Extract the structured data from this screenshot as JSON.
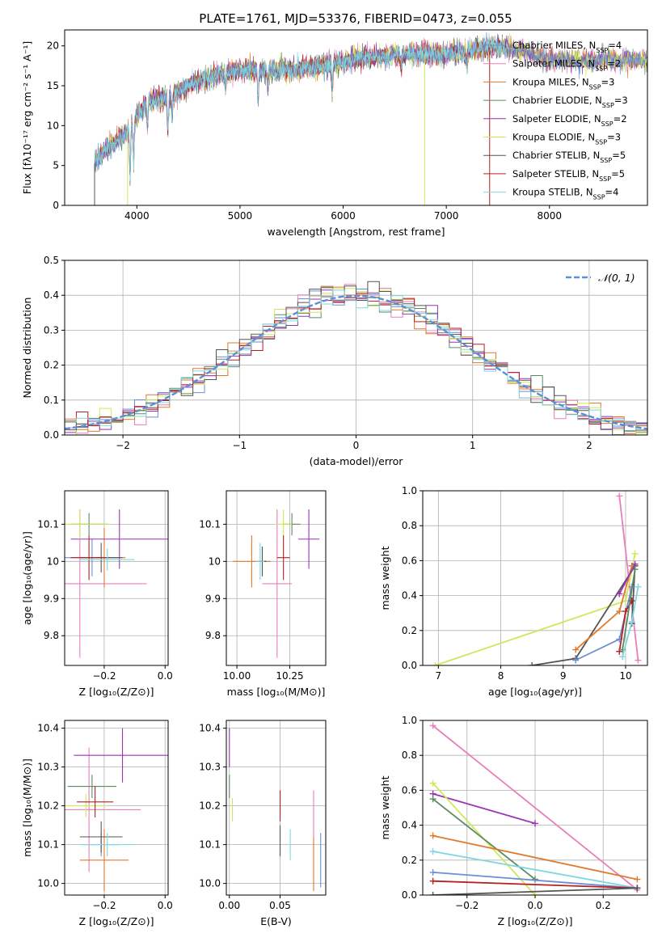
{
  "figure_title": "PLATE=1761, MJD=53376, FIBERID=0473, z=0.055",
  "colors": {
    "Chabrier MILES": "#6b8ed6",
    "Salpeter MILES": "#e87fba",
    "Kroupa MILES": "#e07a2c",
    "Chabrier ELODIE": "#5e8a62",
    "Salpeter ELODIE": "#9b35b5",
    "Kroupa ELODIE": "#cfe85a",
    "Chabrier STELIB": "#555555",
    "Salpeter STELIB": "#b52020",
    "Kroupa STELIB": "#7fd7e0"
  },
  "chart_data": [
    {
      "id": "spectrum",
      "type": "line",
      "xlabel": "wavelength [Angstrom, rest frame]",
      "ylabel": "Flux [fλ10⁻¹⁷ erg cm⁻² s⁻¹ A⁻¹]",
      "xlim": [
        3300,
        8950
      ],
      "ylim": [
        0,
        22
      ],
      "xticks": [
        4000,
        5000,
        6000,
        7000,
        8000
      ],
      "yticks": [
        0,
        5,
        10,
        15,
        20
      ],
      "legend": [
        {
          "name": "Chabrier MILES",
          "sub": "4"
        },
        {
          "name": "Salpeter MILES",
          "sub": "2"
        },
        {
          "name": "Kroupa MILES",
          "sub": "3"
        },
        {
          "name": "Chabrier ELODIE",
          "sub": "3"
        },
        {
          "name": "Salpeter ELODIE",
          "sub": "2"
        },
        {
          "name": "Kroupa ELODIE",
          "sub": "3"
        },
        {
          "name": "Chabrier STELIB",
          "sub": "5"
        },
        {
          "name": "Salpeter STELIB",
          "sub": "5"
        },
        {
          "name": "Kroupa STELIB",
          "sub": "4"
        }
      ],
      "legend_label_prefix": "N",
      "legend_label_sub": "SSP",
      "continuum": [
        [
          3580,
          5
        ],
        [
          3700,
          7
        ],
        [
          3850,
          8.5
        ],
        [
          3950,
          10
        ],
        [
          4100,
          13
        ],
        [
          4300,
          13.5
        ],
        [
          4500,
          15
        ],
        [
          4800,
          16.5
        ],
        [
          5100,
          17
        ],
        [
          5400,
          17
        ],
        [
          5800,
          17.5
        ],
        [
          6200,
          18.5
        ],
        [
          6600,
          19
        ],
        [
          7000,
          19
        ],
        [
          7300,
          19.5
        ],
        [
          7500,
          20
        ],
        [
          7700,
          19.5
        ],
        [
          8000,
          18.2
        ],
        [
          8950,
          18.2
        ]
      ],
      "absorption_lines": [
        [
          3934,
          6
        ],
        [
          3969,
          5
        ],
        [
          4102,
          3
        ],
        [
          4300,
          4
        ],
        [
          4341,
          3
        ],
        [
          4861,
          2
        ],
        [
          5175,
          4
        ],
        [
          5270,
          2.5
        ],
        [
          5893,
          3
        ],
        [
          6563,
          1.5
        ],
        [
          7200,
          2
        ]
      ],
      "dropouts": [
        {
          "x": 3590,
          "series": "Chabrier STELIB"
        },
        {
          "x": 3910,
          "series": "Kroupa ELODIE"
        },
        {
          "x": 6790,
          "series": "Kroupa ELODIE"
        },
        {
          "x": 7420,
          "series": "Salpeter STELIB"
        }
      ]
    },
    {
      "id": "residuals",
      "type": "line",
      "xlabel": "(data-model)/error",
      "ylabel": "Normed distribution",
      "xlim": [
        -2.5,
        2.5
      ],
      "ylim": [
        0,
        0.5
      ],
      "xticks": [
        -2,
        -1,
        0,
        1,
        2
      ],
      "xticklabels": [
        "−2",
        "−1",
        "0",
        "1",
        "2"
      ],
      "yticks": [
        0,
        0.1,
        0.2,
        0.3,
        0.4,
        0.5
      ],
      "yticklabels": [
        "0.0",
        "0.1",
        "0.2",
        "0.3",
        "0.4",
        "0.5"
      ],
      "bin_width": 0.1,
      "reference_legend": "𝒩(0, 1)"
    },
    {
      "id": "age_vs_Z",
      "type": "scatter",
      "xlabel": "Z [log₁₀(Z/Z⊙)]",
      "ylabel": "age  [log₁₀(age/yr)]",
      "xlim": [
        -0.33,
        0.01
      ],
      "ylim": [
        9.72,
        10.19
      ],
      "xticks": [
        -0.2,
        0.0
      ],
      "xticklabels": [
        "−0.2",
        "0.0"
      ],
      "yticks": [
        9.8,
        9.9,
        10.0,
        10.1
      ],
      "points": [
        {
          "series": "Chabrier MILES",
          "x": -0.24,
          "y": 10.01,
          "xerr": 0.09,
          "yerr": 0.05
        },
        {
          "series": "Salpeter MILES",
          "x": -0.28,
          "y": 9.94,
          "xerr": 0.22,
          "yerr": 0.2
        },
        {
          "series": "Kroupa MILES",
          "x": -0.2,
          "y": 10.01,
          "xerr": 0.07,
          "yerr": 0.08
        },
        {
          "series": "Chabrier ELODIE",
          "x": -0.25,
          "y": 10.1,
          "xerr": 0.06,
          "yerr": 0.03
        },
        {
          "series": "Salpeter ELODIE",
          "x": -0.15,
          "y": 10.06,
          "xerr": 0.16,
          "yerr": 0.08
        },
        {
          "series": "Kroupa ELODIE",
          "x": -0.28,
          "y": 10.1,
          "xerr": 0.1,
          "yerr": 0.04
        },
        {
          "series": "Chabrier STELIB",
          "x": -0.21,
          "y": 10.01,
          "xerr": 0.07,
          "yerr": 0.04
        },
        {
          "series": "Salpeter STELIB",
          "x": -0.25,
          "y": 10.01,
          "xerr": 0.06,
          "yerr": 0.06
        },
        {
          "series": "Kroupa STELIB",
          "x": -0.19,
          "y": 10.005,
          "xerr": 0.09,
          "yerr": 0.03
        }
      ]
    },
    {
      "id": "age_vs_mass",
      "type": "scatter",
      "xlabel": "mass [log₁₀(M/M⊙)]",
      "ylabel": "",
      "xlim": [
        9.95,
        10.42
      ],
      "ylim": [
        9.72,
        10.19
      ],
      "xticks": [
        10.0,
        10.25
      ],
      "xticklabels": [
        "10.00",
        "10.25"
      ],
      "yticks": [
        9.8,
        9.9,
        10.0,
        10.1
      ],
      "points": [
        {
          "series": "Chabrier MILES",
          "x": 10.12,
          "y": 10.0,
          "xerr": 0.02,
          "yerr": 0.04
        },
        {
          "series": "Salpeter MILES",
          "x": 10.19,
          "y": 9.94,
          "xerr": 0.07,
          "yerr": 0.2
        },
        {
          "series": "Kroupa MILES",
          "x": 10.07,
          "y": 10.0,
          "xerr": 0.09,
          "yerr": 0.07
        },
        {
          "series": "Chabrier ELODIE",
          "x": 10.26,
          "y": 10.1,
          "xerr": 0.04,
          "yerr": 0.03
        },
        {
          "series": "Salpeter ELODIE",
          "x": 10.34,
          "y": 10.06,
          "xerr": 0.05,
          "yerr": 0.08
        },
        {
          "series": "Kroupa ELODIE",
          "x": 10.22,
          "y": 10.1,
          "xerr": 0.04,
          "yerr": 0.04
        },
        {
          "series": "Chabrier STELIB",
          "x": 10.12,
          "y": 10.0,
          "xerr": 0.02,
          "yerr": 0.04
        },
        {
          "series": "Salpeter STELIB",
          "x": 10.22,
          "y": 10.01,
          "xerr": 0.03,
          "yerr": 0.06
        },
        {
          "series": "Kroupa STELIB",
          "x": 10.11,
          "y": 10.0,
          "xerr": 0.02,
          "yerr": 0.05
        }
      ]
    },
    {
      "id": "weight_vs_age",
      "type": "line",
      "xlabel": "age  [log₁₀(age/yr)]",
      "ylabel": "mass weight",
      "xlim": [
        6.75,
        10.35
      ],
      "ylim": [
        0,
        1.0
      ],
      "xticks": [
        7,
        8,
        9,
        10
      ],
      "yticks": [
        0,
        0.2,
        0.4,
        0.6,
        0.8,
        1.0
      ],
      "yticklabels": [
        "0.0",
        "0.2",
        "0.4",
        "0.6",
        "0.8",
        "1.0"
      ],
      "series": [
        {
          "name": "Salpeter MILES",
          "points": [
            [
              9.9,
              0.97
            ],
            [
              10.2,
              0.03
            ]
          ]
        },
        {
          "name": "Kroupa ELODIE",
          "points": [
            [
              6.95,
              0.0
            ],
            [
              10.0,
              0.37
            ],
            [
              10.15,
              0.64
            ]
          ]
        },
        {
          "name": "Chabrier STELIB",
          "points": [
            [
              8.5,
              0.0
            ],
            [
              9.2,
              0.04
            ],
            [
              10.15,
              0.57
            ],
            [
              10.1,
              0.24
            ]
          ]
        },
        {
          "name": "Chabrier MILES",
          "points": [
            [
              9.2,
              0.03
            ],
            [
              9.9,
              0.15
            ],
            [
              10.1,
              0.45
            ]
          ]
        },
        {
          "name": "Kroupa MILES",
          "points": [
            [
              9.2,
              0.09
            ],
            [
              9.9,
              0.31
            ],
            [
              10.1,
              0.57
            ]
          ]
        },
        {
          "name": "Salpeter ELODIE",
          "points": [
            [
              9.9,
              0.41
            ],
            [
              10.15,
              0.58
            ]
          ]
        },
        {
          "name": "Salpeter STELIB",
          "points": [
            [
              9.9,
              0.08
            ],
            [
              10.0,
              0.31
            ],
            [
              10.1,
              0.37
            ]
          ]
        },
        {
          "name": "Chabrier ELODIE",
          "points": [
            [
              9.95,
              0.09
            ],
            [
              10.15,
              0.55
            ]
          ]
        },
        {
          "name": "Kroupa STELIB",
          "points": [
            [
              9.95,
              0.05
            ],
            [
              10.1,
              0.25
            ],
            [
              10.2,
              0.45
            ]
          ]
        }
      ]
    },
    {
      "id": "mass_vs_Z",
      "type": "scatter",
      "xlabel": "Z [log₁₀(Z/Z⊙)]",
      "ylabel": "mass [log₁₀(M/M⊙)]",
      "xlim": [
        -0.33,
        0.01
      ],
      "ylim": [
        9.97,
        10.42
      ],
      "xticks": [
        -0.2,
        0.0
      ],
      "xticklabels": [
        "−0.2",
        "0.0"
      ],
      "yticks": [
        10.0,
        10.1,
        10.2,
        10.3,
        10.4
      ],
      "yticklabels": [
        "10.0",
        "10.1",
        "10.2",
        "10.3",
        "10.4"
      ],
      "points": [
        {
          "series": "Chabrier MILES",
          "x": -0.21,
          "y": 10.1,
          "xerr": 0.06,
          "yerr": 0.03
        },
        {
          "series": "Salpeter MILES",
          "x": -0.25,
          "y": 10.19,
          "xerr": 0.17,
          "yerr": 0.16
        },
        {
          "series": "Kroupa MILES",
          "x": -0.2,
          "y": 10.06,
          "xerr": 0.08,
          "yerr": 0.08
        },
        {
          "series": "Chabrier ELODIE",
          "x": -0.24,
          "y": 10.25,
          "xerr": 0.08,
          "yerr": 0.03
        },
        {
          "series": "Salpeter ELODIE",
          "x": -0.14,
          "y": 10.33,
          "xerr": 0.16,
          "yerr": 0.07
        },
        {
          "series": "Kroupa ELODIE",
          "x": -0.26,
          "y": 10.2,
          "xerr": 0.07,
          "yerr": 0.03
        },
        {
          "series": "Chabrier STELIB",
          "x": -0.21,
          "y": 10.12,
          "xerr": 0.07,
          "yerr": 0.04
        },
        {
          "series": "Salpeter STELIB",
          "x": -0.23,
          "y": 10.21,
          "xerr": 0.06,
          "yerr": 0.04
        },
        {
          "series": "Kroupa STELIB",
          "x": -0.19,
          "y": 10.1,
          "xerr": 0.09,
          "yerr": 0.03
        }
      ]
    },
    {
      "id": "mass_vs_EBV",
      "type": "scatter",
      "xlabel": "E(B-V)",
      "ylabel": "",
      "xlim": [
        -0.003,
        0.095
      ],
      "ylim": [
        9.97,
        10.42
      ],
      "xticks": [
        0.0,
        0.05
      ],
      "xticklabels": [
        "0.00",
        "0.05"
      ],
      "yticks": [
        10.0,
        10.1,
        10.2,
        10.3,
        10.4
      ],
      "yticklabels": [
        "10.0",
        "10.1",
        "10.2",
        "10.3",
        "10.4"
      ],
      "points": [
        {
          "series": "Chabrier MILES",
          "x": 0.09,
          "y": 10.06,
          "xerr": 0,
          "yerr": 0.07
        },
        {
          "series": "Salpeter MILES",
          "x": 0.083,
          "y": 10.18,
          "xerr": 0,
          "yerr": 0.06
        },
        {
          "series": "Kroupa MILES",
          "x": 0.083,
          "y": 10.05,
          "xerr": 0,
          "yerr": 0.07
        },
        {
          "series": "Chabrier ELODIE",
          "x": 0.0,
          "y": 10.25,
          "xerr": 0,
          "yerr": 0.03
        },
        {
          "series": "Salpeter ELODIE",
          "x": 0.0,
          "y": 10.35,
          "xerr": 0,
          "yerr": 0.05
        },
        {
          "series": "Kroupa ELODIE",
          "x": 0.003,
          "y": 10.19,
          "xerr": 0,
          "yerr": 0.03
        },
        {
          "series": "Chabrier STELIB",
          "x": 0.05,
          "y": 10.11,
          "xerr": 0,
          "yerr": 0.04
        },
        {
          "series": "Salpeter STELIB",
          "x": 0.05,
          "y": 10.2,
          "xerr": 0,
          "yerr": 0.04
        },
        {
          "series": "Kroupa STELIB",
          "x": 0.06,
          "y": 10.1,
          "xerr": 0,
          "yerr": 0.04
        }
      ]
    },
    {
      "id": "weight_vs_Z",
      "type": "line",
      "xlabel": "Z [log₁₀(Z/Z⊙)]",
      "ylabel": "mass weight",
      "xlim": [
        -0.33,
        0.33
      ],
      "ylim": [
        0,
        1.0
      ],
      "xticks": [
        -0.2,
        0.0,
        0.2
      ],
      "xticklabels": [
        "−0.2",
        "0.0",
        "0.2"
      ],
      "yticks": [
        0,
        0.2,
        0.4,
        0.6,
        0.8,
        1.0
      ],
      "yticklabels": [
        "0.0",
        "0.2",
        "0.4",
        "0.6",
        "0.8",
        "1.0"
      ],
      "series": [
        {
          "name": "Salpeter MILES",
          "points": [
            [
              -0.3,
              0.97
            ],
            [
              0.3,
              0.03
            ]
          ]
        },
        {
          "name": "Salpeter ELODIE",
          "points": [
            [
              -0.3,
              0.58
            ],
            [
              0.0,
              0.41
            ]
          ]
        },
        {
          "name": "Kroupa ELODIE",
          "points": [
            [
              -0.3,
              0.64
            ],
            [
              0.0,
              0.0
            ]
          ]
        },
        {
          "name": "Chabrier ELODIE",
          "points": [
            [
              -0.3,
              0.55
            ],
            [
              0.0,
              0.09
            ]
          ]
        },
        {
          "name": "Kroupa MILES",
          "points": [
            [
              -0.3,
              0.34
            ],
            [
              0.3,
              0.09
            ]
          ]
        },
        {
          "name": "Kroupa STELIB",
          "points": [
            [
              -0.3,
              0.25
            ],
            [
              0.3,
              0.04
            ]
          ]
        },
        {
          "name": "Chabrier MILES",
          "points": [
            [
              -0.3,
              0.13
            ],
            [
              0.3,
              0.04
            ]
          ]
        },
        {
          "name": "Salpeter STELIB",
          "points": [
            [
              -0.3,
              0.08
            ],
            [
              0.3,
              0.04
            ]
          ]
        },
        {
          "name": "Chabrier STELIB",
          "points": [
            [
              -0.3,
              0.0
            ],
            [
              0.3,
              0.04
            ]
          ]
        }
      ]
    }
  ]
}
